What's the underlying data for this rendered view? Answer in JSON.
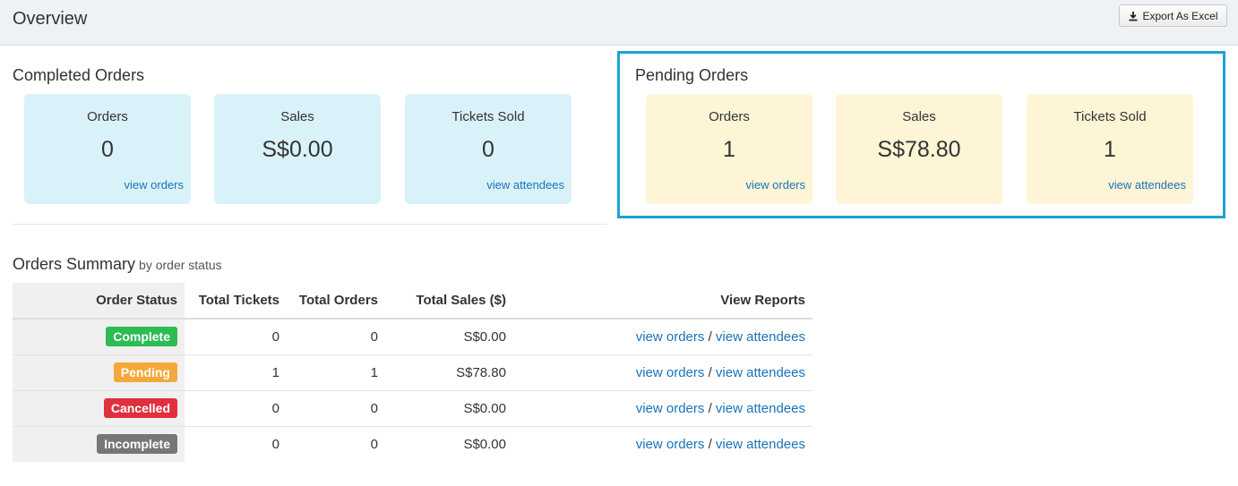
{
  "header": {
    "title": "Overview",
    "export_label": "Export As Excel"
  },
  "completed": {
    "title": "Completed Orders",
    "cards": [
      {
        "label": "Orders",
        "value": "0",
        "link": "view orders"
      },
      {
        "label": "Sales",
        "value": "S$0.00",
        "link": ""
      },
      {
        "label": "Tickets Sold",
        "value": "0",
        "link": "view attendees"
      }
    ]
  },
  "pending": {
    "title": "Pending Orders",
    "cards": [
      {
        "label": "Orders",
        "value": "1",
        "link": "view orders"
      },
      {
        "label": "Sales",
        "value": "S$78.80",
        "link": ""
      },
      {
        "label": "Tickets Sold",
        "value": "1",
        "link": "view attendees"
      }
    ]
  },
  "summary": {
    "title": "Orders Summary",
    "subtitle": "by order status",
    "columns": [
      "Order Status",
      "Total Tickets",
      "Total Orders",
      "Total Sales ($)",
      "View Reports"
    ],
    "rows": [
      {
        "status": "Complete",
        "color": "#2dbb54",
        "tickets": "0",
        "orders": "0",
        "sales": "S$0.00",
        "link_orders": "view orders",
        "sep": "/",
        "link_attendees": "view attendees"
      },
      {
        "status": "Pending",
        "color": "#f5a83a",
        "tickets": "1",
        "orders": "1",
        "sales": "S$78.80",
        "link_orders": "view orders",
        "sep": "/",
        "link_attendees": "view attendees"
      },
      {
        "status": "Cancelled",
        "color": "#e0303d",
        "tickets": "0",
        "orders": "0",
        "sales": "S$0.00",
        "link_orders": "view orders",
        "sep": "/",
        "link_attendees": "view attendees"
      },
      {
        "status": "Incomplete",
        "color": "#777777",
        "tickets": "0",
        "orders": "0",
        "sales": "S$0.00",
        "link_orders": "view orders",
        "sep": "/",
        "link_attendees": "view attendees"
      }
    ]
  },
  "colors": {
    "highlight": "#1aa3d4",
    "link": "#1a73b8",
    "card_blue": "#d9f2f9",
    "card_yellow": "#fdf5d6"
  }
}
